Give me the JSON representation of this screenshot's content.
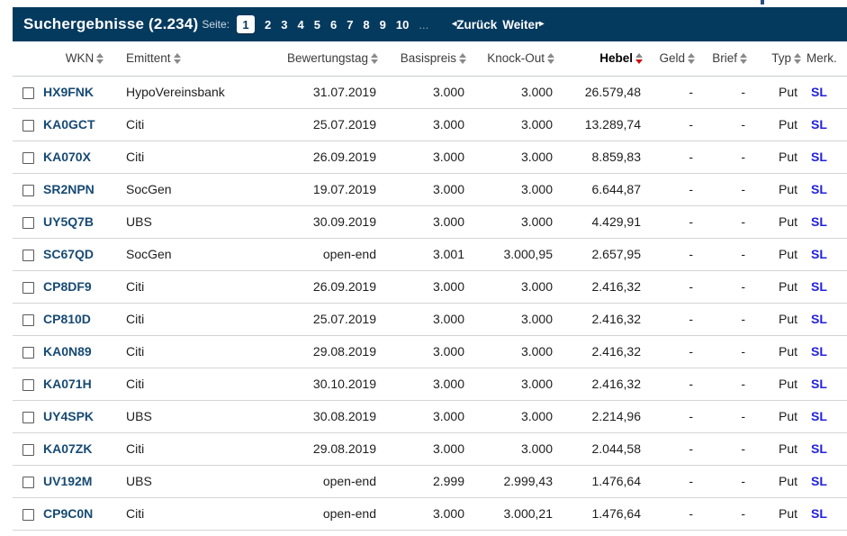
{
  "colors": {
    "bar_background": "#053a5f",
    "wkn_link": "#174a73",
    "merk_link": "#2222dd",
    "sort_active_arrow": "#cc1111"
  },
  "header": {
    "title": "Suchergebnisse (2.234)",
    "pagination": {
      "label": "Seite:",
      "current": "1",
      "pages": [
        "1",
        "2",
        "3",
        "4",
        "5",
        "6",
        "7",
        "8",
        "9",
        "10"
      ],
      "ellipsis": "...",
      "back_arrow": "◂",
      "back_label": "Zurück",
      "next_label": "Weiter",
      "next_arrow": "▸"
    }
  },
  "table": {
    "columns": [
      {
        "key": "select",
        "label": "",
        "sortable": false,
        "align": "left"
      },
      {
        "key": "wkn",
        "label": "WKN",
        "sortable": true,
        "align": "center"
      },
      {
        "key": "emittent",
        "label": "Emittent",
        "sortable": true,
        "align": "left"
      },
      {
        "key": "bewertungstag",
        "label": "Bewertungstag",
        "sortable": true,
        "align": "right"
      },
      {
        "key": "basispreis",
        "label": "Basispreis",
        "sortable": true,
        "align": "right"
      },
      {
        "key": "knock_out",
        "label": "Knock-Out",
        "sortable": true,
        "align": "right"
      },
      {
        "key": "hebel",
        "label": "Hebel",
        "sortable": true,
        "sorted": "desc",
        "align": "right"
      },
      {
        "key": "geld",
        "label": "Geld",
        "sortable": true,
        "align": "right"
      },
      {
        "key": "brief",
        "label": "Brief",
        "sortable": true,
        "align": "right"
      },
      {
        "key": "typ",
        "label": "Typ",
        "sortable": true,
        "align": "right"
      },
      {
        "key": "merk",
        "label": "Merk.",
        "sortable": false,
        "align": "left"
      }
    ],
    "rows": [
      {
        "wkn": "HX9FNK",
        "emittent": "HypoVereinsbank",
        "bewertungstag": "31.07.2019",
        "basispreis": "3.000",
        "knock_out": "3.000",
        "hebel": "26.579,48",
        "geld": "-",
        "brief": "-",
        "typ": "Put",
        "merk": "SL"
      },
      {
        "wkn": "KA0GCT",
        "emittent": "Citi",
        "bewertungstag": "25.07.2019",
        "basispreis": "3.000",
        "knock_out": "3.000",
        "hebel": "13.289,74",
        "geld": "-",
        "brief": "-",
        "typ": "Put",
        "merk": "SL"
      },
      {
        "wkn": "KA070X",
        "emittent": "Citi",
        "bewertungstag": "26.09.2019",
        "basispreis": "3.000",
        "knock_out": "3.000",
        "hebel": "8.859,83",
        "geld": "-",
        "brief": "-",
        "typ": "Put",
        "merk": "SL"
      },
      {
        "wkn": "SR2NPN",
        "emittent": "SocGen",
        "bewertungstag": "19.07.2019",
        "basispreis": "3.000",
        "knock_out": "3.000",
        "hebel": "6.644,87",
        "geld": "-",
        "brief": "-",
        "typ": "Put",
        "merk": "SL"
      },
      {
        "wkn": "UY5Q7B",
        "emittent": "UBS",
        "bewertungstag": "30.09.2019",
        "basispreis": "3.000",
        "knock_out": "3.000",
        "hebel": "4.429,91",
        "geld": "-",
        "brief": "-",
        "typ": "Put",
        "merk": "SL"
      },
      {
        "wkn": "SC67QD",
        "emittent": "SocGen",
        "bewertungstag": "open-end",
        "basispreis": "3.001",
        "knock_out": "3.000,95",
        "hebel": "2.657,95",
        "geld": "-",
        "brief": "-",
        "typ": "Put",
        "merk": "SL"
      },
      {
        "wkn": "CP8DF9",
        "emittent": "Citi",
        "bewertungstag": "26.09.2019",
        "basispreis": "3.000",
        "knock_out": "3.000",
        "hebel": "2.416,32",
        "geld": "-",
        "brief": "-",
        "typ": "Put",
        "merk": "SL"
      },
      {
        "wkn": "CP810D",
        "emittent": "Citi",
        "bewertungstag": "25.07.2019",
        "basispreis": "3.000",
        "knock_out": "3.000",
        "hebel": "2.416,32",
        "geld": "-",
        "brief": "-",
        "typ": "Put",
        "merk": "SL"
      },
      {
        "wkn": "KA0N89",
        "emittent": "Citi",
        "bewertungstag": "29.08.2019",
        "basispreis": "3.000",
        "knock_out": "3.000",
        "hebel": "2.416,32",
        "geld": "-",
        "brief": "-",
        "typ": "Put",
        "merk": "SL"
      },
      {
        "wkn": "KA071H",
        "emittent": "Citi",
        "bewertungstag": "30.10.2019",
        "basispreis": "3.000",
        "knock_out": "3.000",
        "hebel": "2.416,32",
        "geld": "-",
        "brief": "-",
        "typ": "Put",
        "merk": "SL"
      },
      {
        "wkn": "UY4SPK",
        "emittent": "UBS",
        "bewertungstag": "30.08.2019",
        "basispreis": "3.000",
        "knock_out": "3.000",
        "hebel": "2.214,96",
        "geld": "-",
        "brief": "-",
        "typ": "Put",
        "merk": "SL"
      },
      {
        "wkn": "KA07ZK",
        "emittent": "Citi",
        "bewertungstag": "29.08.2019",
        "basispreis": "3.000",
        "knock_out": "3.000",
        "hebel": "2.044,58",
        "geld": "-",
        "brief": "-",
        "typ": "Put",
        "merk": "SL"
      },
      {
        "wkn": "UV192M",
        "emittent": "UBS",
        "bewertungstag": "open-end",
        "basispreis": "2.999",
        "knock_out": "2.999,43",
        "hebel": "1.476,64",
        "geld": "-",
        "brief": "-",
        "typ": "Put",
        "merk": "SL"
      },
      {
        "wkn": "CP9C0N",
        "emittent": "Citi",
        "bewertungstag": "open-end",
        "basispreis": "3.000",
        "knock_out": "3.000,21",
        "hebel": "1.476,64",
        "geld": "-",
        "brief": "-",
        "typ": "Put",
        "merk": "SL"
      }
    ]
  }
}
